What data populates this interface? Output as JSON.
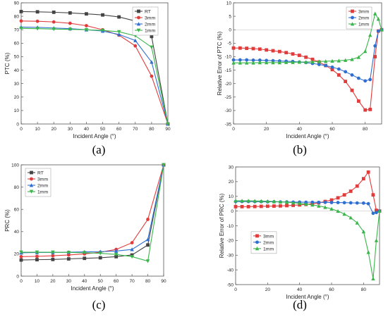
{
  "chart_data": [
    {
      "id": "a",
      "type": "line",
      "caption": "(a)",
      "xlabel": "Incident Angle (°)",
      "ylabel": "PTC (%)",
      "xlim": [
        0,
        90
      ],
      "ylim": [
        0,
        90
      ],
      "xticks": [
        0,
        10,
        20,
        30,
        40,
        50,
        60,
        70,
        80,
        90
      ],
      "yticks": [
        0,
        10,
        20,
        30,
        40,
        50,
        60,
        70,
        80,
        90
      ],
      "legend_position": "top-right",
      "x": [
        0,
        10,
        20,
        30,
        40,
        50,
        60,
        70,
        80,
        90
      ],
      "series": [
        {
          "name": "RT",
          "color": "#444444",
          "marker": "square",
          "values": [
            83.5,
            83.3,
            83.0,
            82.5,
            81.8,
            81.0,
            79.5,
            76.5,
            65.0,
            0
          ]
        },
        {
          "name": "3mm",
          "color": "#e23b3b",
          "marker": "circle",
          "values": [
            76.5,
            76.3,
            75.8,
            74.8,
            73.0,
            70.0,
            66.0,
            58.0,
            35.5,
            0
          ]
        },
        {
          "name": "2mm",
          "color": "#2f6fd1",
          "marker": "triangle-up",
          "values": [
            72.0,
            71.8,
            71.3,
            70.8,
            70.0,
            69.0,
            66.5,
            62.0,
            46.0,
            0
          ]
        },
        {
          "name": "1mm",
          "color": "#39b54a",
          "marker": "triangle-down",
          "values": [
            71.0,
            70.8,
            70.5,
            70.3,
            70.0,
            69.5,
            68.5,
            65.5,
            57.0,
            0
          ]
        }
      ]
    },
    {
      "id": "b",
      "type": "line",
      "caption": "(b)",
      "xlabel": "Incident Angle (°)",
      "ylabel": "Relative Error of PTC (%)",
      "xlim": [
        0,
        90
      ],
      "ylim": [
        -35,
        10
      ],
      "xticks": [
        0,
        20,
        40,
        60,
        80
      ],
      "yticks": [
        10,
        5,
        0,
        -5,
        -10,
        -15,
        -20,
        -25,
        -30,
        -35
      ],
      "legend_position": "top-right",
      "x": [
        0,
        4,
        8,
        12,
        16,
        20,
        24,
        28,
        32,
        36,
        40,
        44,
        48,
        52,
        56,
        60,
        64,
        68,
        72,
        76,
        80,
        83,
        86,
        88,
        90
      ],
      "series": [
        {
          "name": "3mm",
          "color": "#e23b3b",
          "marker": "square",
          "values": [
            -6.8,
            -6.8,
            -6.9,
            -7.0,
            -7.2,
            -7.5,
            -7.8,
            -8.1,
            -8.5,
            -9.0,
            -9.5,
            -10.2,
            -11.0,
            -12.0,
            -13.3,
            -14.8,
            -16.8,
            -19.2,
            -22.5,
            -26.5,
            -29.8,
            -29.6,
            -10.0,
            -0.5,
            0.0
          ]
        },
        {
          "name": "2mm",
          "color": "#2f6fd1",
          "marker": "circle",
          "values": [
            -11.2,
            -11.2,
            -11.2,
            -11.3,
            -11.3,
            -11.4,
            -11.5,
            -11.6,
            -11.7,
            -11.8,
            -12.0,
            -12.2,
            -12.5,
            -12.9,
            -13.3,
            -13.9,
            -14.6,
            -15.6,
            -16.8,
            -18.0,
            -19.0,
            -18.5,
            -6.0,
            -0.5,
            0.0
          ]
        },
        {
          "name": "1mm",
          "color": "#39b54a",
          "marker": "triangle-up",
          "values": [
            -12.3,
            -12.3,
            -12.3,
            -12.3,
            -12.2,
            -12.2,
            -12.2,
            -12.2,
            -12.1,
            -12.1,
            -12.0,
            -12.0,
            -11.9,
            -11.8,
            -11.7,
            -11.6,
            -11.5,
            -11.3,
            -11.0,
            -10.2,
            -8.0,
            -2.0,
            6.0,
            4.0,
            0.0
          ]
        }
      ]
    },
    {
      "id": "c",
      "type": "line",
      "caption": "(c)",
      "xlabel": "Incident Angle (°)",
      "ylabel": "PRC (%)",
      "xlim": [
        0,
        90
      ],
      "ylim": [
        0,
        100
      ],
      "xticks": [
        0,
        10,
        20,
        30,
        40,
        50,
        60,
        70,
        80,
        90
      ],
      "yticks": [
        0,
        20,
        40,
        60,
        80,
        100
      ],
      "legend_position": "top-left",
      "x": [
        0,
        10,
        20,
        30,
        40,
        50,
        60,
        70,
        80,
        90
      ],
      "series": [
        {
          "name": "RT",
          "color": "#444444",
          "marker": "square",
          "values": [
            14.5,
            14.8,
            15.0,
            15.5,
            16.0,
            16.5,
            17.5,
            19.0,
            28.0,
            100
          ]
        },
        {
          "name": "3mm",
          "color": "#e23b3b",
          "marker": "circle",
          "values": [
            17.5,
            17.8,
            18.3,
            19.0,
            20.0,
            21.5,
            24.0,
            30.0,
            51.0,
            100
          ]
        },
        {
          "name": "2mm",
          "color": "#2f6fd1",
          "marker": "triangle-up",
          "values": [
            21.0,
            21.2,
            21.3,
            21.5,
            21.8,
            22.0,
            22.5,
            24.0,
            33.0,
            100
          ]
        },
        {
          "name": "1mm",
          "color": "#39b54a",
          "marker": "triangle-down",
          "values": [
            21.5,
            21.5,
            21.5,
            21.3,
            21.0,
            20.5,
            19.5,
            17.5,
            13.5,
            100
          ]
        }
      ]
    },
    {
      "id": "d",
      "type": "line",
      "caption": "(d)",
      "xlabel": "Incident Angle (°)",
      "ylabel": "Relative Error of PRC (%)",
      "xlim": [
        0,
        90
      ],
      "ylim": [
        -50,
        30
      ],
      "xticks": [
        0,
        20,
        40,
        60,
        80
      ],
      "yticks": [
        30,
        20,
        10,
        0,
        -10,
        -20,
        -30,
        -40,
        -50
      ],
      "legend_position": "left-center",
      "x": [
        0,
        4,
        8,
        12,
        16,
        20,
        24,
        28,
        32,
        36,
        40,
        44,
        48,
        52,
        56,
        60,
        64,
        68,
        72,
        76,
        80,
        83,
        86,
        88,
        90
      ],
      "series": [
        {
          "name": "3mm",
          "color": "#e23b3b",
          "marker": "square",
          "values": [
            3.0,
            3.0,
            3.0,
            3.1,
            3.2,
            3.3,
            3.4,
            3.5,
            3.7,
            3.9,
            4.2,
            4.5,
            5.0,
            5.6,
            6.5,
            7.5,
            9.0,
            11.0,
            13.5,
            17.0,
            22.0,
            26.5,
            11.0,
            0.5,
            0.0
          ]
        },
        {
          "name": "2mm",
          "color": "#2f6fd1",
          "marker": "circle",
          "values": [
            6.5,
            6.5,
            6.5,
            6.4,
            6.4,
            6.3,
            6.3,
            6.2,
            6.2,
            6.1,
            6.1,
            6.0,
            6.0,
            5.9,
            5.9,
            5.8,
            5.8,
            5.7,
            5.6,
            5.5,
            5.4,
            5.0,
            -1.5,
            -1.0,
            0.0
          ]
        },
        {
          "name": "1mm",
          "color": "#39b54a",
          "marker": "triangle-up",
          "values": [
            7.0,
            7.0,
            7.0,
            6.9,
            6.8,
            6.7,
            6.5,
            6.3,
            6.0,
            5.7,
            5.3,
            4.8,
            4.2,
            3.5,
            2.6,
            1.5,
            0.0,
            -2.0,
            -4.5,
            -8.0,
            -14.0,
            -28.0,
            -46.0,
            -20.0,
            0.0
          ]
        }
      ]
    }
  ]
}
